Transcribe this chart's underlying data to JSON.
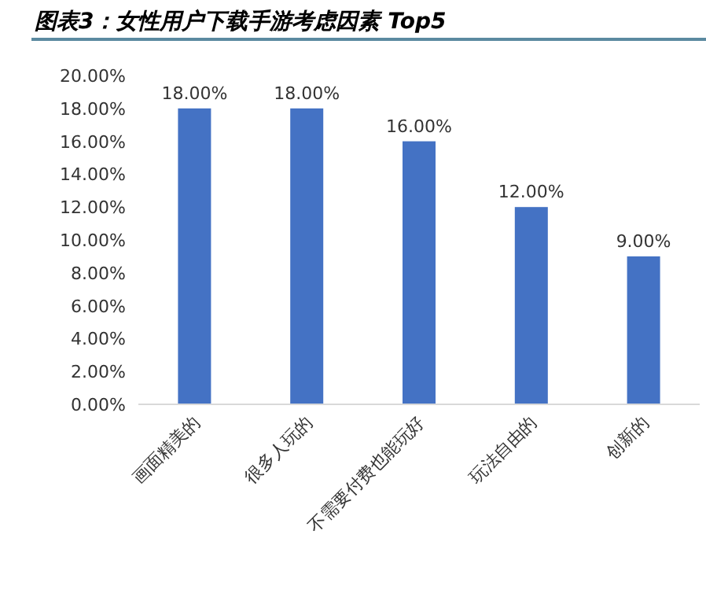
{
  "chart_data": {
    "type": "bar",
    "title": "图表3：女性用户下载手游考虑因素 Top5",
    "categories": [
      "画面精美的",
      "很多人玩的",
      "不需要付费也能玩好",
      "玩法自由的",
      "创新的"
    ],
    "values": [
      18,
      18,
      16,
      12,
      9
    ],
    "value_labels": [
      "18.00%",
      "18.00%",
      "16.00%",
      "12.00%",
      "9.00%"
    ],
    "color": "#4472c4",
    "ylim": [
      0,
      20
    ],
    "yticks": [
      {
        "value": 0,
        "label": "0.00%"
      },
      {
        "value": 2,
        "label": "2.00%"
      },
      {
        "value": 4,
        "label": "4.00%"
      },
      {
        "value": 6,
        "label": "6.00%"
      },
      {
        "value": 8,
        "label": "8.00%"
      },
      {
        "value": 10,
        "label": "10.00%"
      },
      {
        "value": 12,
        "label": "12.00%"
      },
      {
        "value": 14,
        "label": "14.00%"
      },
      {
        "value": 16,
        "label": "16.00%"
      },
      {
        "value": 18,
        "label": "18.00%"
      },
      {
        "value": 20,
        "label": "20.00%"
      }
    ],
    "grid": false
  }
}
